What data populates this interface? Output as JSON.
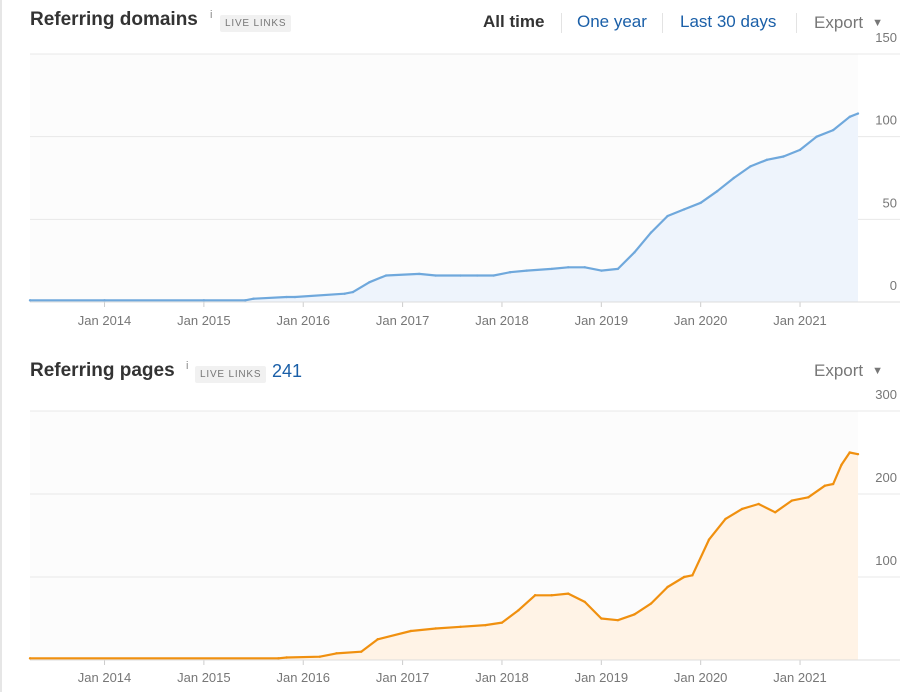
{
  "domains_panel": {
    "title": "Referring domains",
    "info_glyph": "i",
    "badge": "LIVE LINKS",
    "tabs": [
      {
        "label": "All time",
        "active": true
      },
      {
        "label": "One year",
        "active": false
      },
      {
        "label": "Last 30 days",
        "active": false
      }
    ],
    "export_label": "Export",
    "caret_glyph": "▼"
  },
  "pages_panel": {
    "title": "Referring pages",
    "info_glyph": "i",
    "badge": "LIVE LINKS",
    "count": "241",
    "export_label": "Export",
    "caret_glyph": "▼"
  },
  "colors": {
    "domains_line": "#6fa8dc",
    "domains_fill": "#eef4fc",
    "pages_line": "#f0900f",
    "pages_fill": "#fff3e6",
    "grid": "#e8e8e8",
    "link": "#1a5fa8"
  },
  "chart_data": [
    {
      "type": "area",
      "title": "Referring domains",
      "x_tick_labels": [
        "Jan 2014",
        "Jan 2015",
        "Jan 2016",
        "Jan 2017",
        "Jan 2018",
        "Jan 2019",
        "Jan 2020",
        "Jan 2021"
      ],
      "y_tick_labels": [
        "0",
        "50",
        "100",
        "150"
      ],
      "ylim": [
        0,
        150
      ],
      "xlim": [
        "2013-04",
        "2021-08"
      ],
      "grid": true,
      "series": [
        {
          "x": [
            "2013-04",
            "2014-01",
            "2015-01",
            "2015-06",
            "2015-07",
            "2015-11",
            "2015-12",
            "2016-06",
            "2016-07",
            "2016-09",
            "2016-11",
            "2017-03",
            "2017-05",
            "2017-08",
            "2017-10",
            "2017-12",
            "2018-02",
            "2018-04",
            "2018-07",
            "2018-09",
            "2018-11",
            "2019-01",
            "2019-03",
            "2019-05",
            "2019-07",
            "2019-09",
            "2019-11",
            "2020-01",
            "2020-03",
            "2020-05",
            "2020-07",
            "2020-09",
            "2020-11",
            "2021-01",
            "2021-03",
            "2021-05",
            "2021-07",
            "2021-08"
          ],
          "y": [
            1,
            1,
            1,
            1,
            2,
            3,
            3,
            5,
            6,
            12,
            16,
            17,
            16,
            16,
            16,
            16,
            18,
            19,
            20,
            21,
            21,
            19,
            20,
            30,
            42,
            52,
            56,
            60,
            67,
            75,
            82,
            86,
            88,
            92,
            100,
            104,
            112,
            114
          ]
        }
      ]
    },
    {
      "type": "area",
      "title": "Referring pages",
      "x_tick_labels": [
        "Jan 2014",
        "Jan 2015",
        "Jan 2016",
        "Jan 2017",
        "Jan 2018",
        "Jan 2019",
        "Jan 2020",
        "Jan 2021"
      ],
      "y_tick_labels": [
        "100",
        "200",
        "300"
      ],
      "ylim": [
        0,
        300
      ],
      "xlim": [
        "2013-04",
        "2021-08"
      ],
      "grid": true,
      "series": [
        {
          "x": [
            "2013-04",
            "2015-10",
            "2015-11",
            "2016-03",
            "2016-05",
            "2016-08",
            "2016-10",
            "2017-02",
            "2017-05",
            "2017-08",
            "2017-11",
            "2018-01",
            "2018-03",
            "2018-05",
            "2018-07",
            "2018-09",
            "2018-11",
            "2019-01",
            "2019-03",
            "2019-05",
            "2019-07",
            "2019-09",
            "2019-11",
            "2019-12",
            "2020-02",
            "2020-04",
            "2020-06",
            "2020-08",
            "2020-10",
            "2020-12",
            "2021-02",
            "2021-04",
            "2021-05",
            "2021-06",
            "2021-07",
            "2021-08"
          ],
          "y": [
            2,
            2,
            3,
            4,
            8,
            10,
            25,
            35,
            38,
            40,
            42,
            45,
            60,
            78,
            78,
            80,
            70,
            50,
            48,
            55,
            68,
            88,
            100,
            102,
            145,
            170,
            182,
            188,
            178,
            192,
            196,
            210,
            212,
            235,
            250,
            248
          ]
        }
      ]
    }
  ]
}
